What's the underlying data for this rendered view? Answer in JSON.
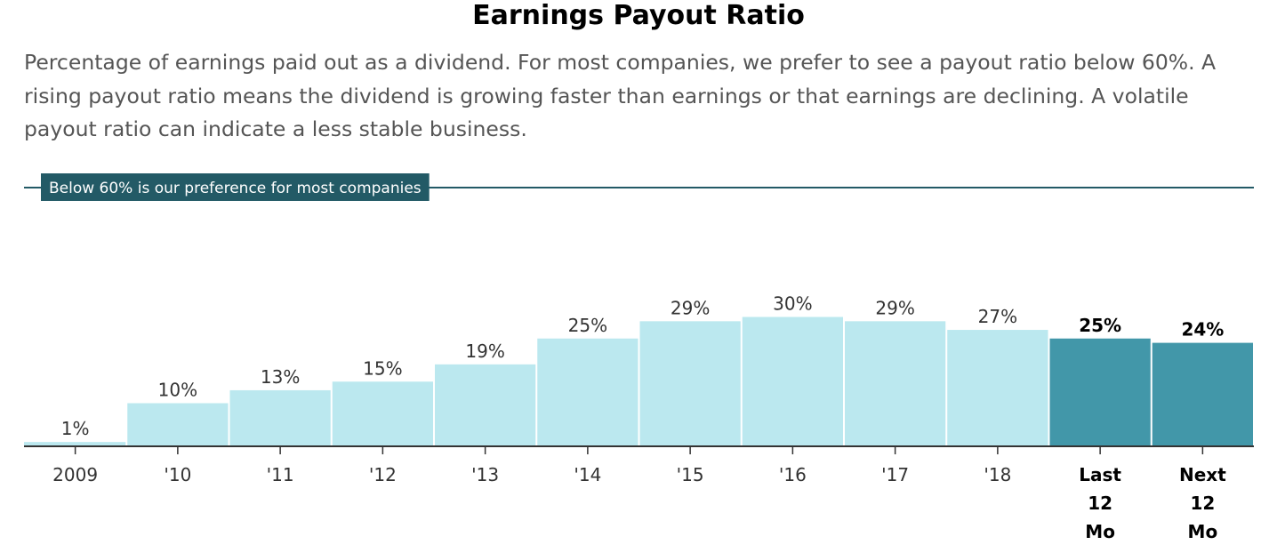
{
  "title": "Earnings Payout Ratio",
  "description": "Percentage of earnings paid out as a dividend. For most companies, we prefer to see a payout ratio below 60%. A rising payout ratio means the dividend is growing faster than earnings or that earnings are declining. A volatile payout ratio can indicate a less stable business.",
  "colors": {
    "historical_bar": "#bbe8ef",
    "highlight_bar": "#4297a9",
    "reference_line": "#235a66",
    "axis": "#333333"
  },
  "chart_data": {
    "type": "bar",
    "title": "Earnings Payout Ratio",
    "xlabel": "",
    "ylabel": "",
    "ylim": [
      0,
      60
    ],
    "grid": false,
    "value_suffix": "%",
    "categories": [
      "2009",
      "'10",
      "'11",
      "'12",
      "'13",
      "'14",
      "'15",
      "'16",
      "'17",
      "'18",
      "Last 12 Mo",
      "Next 12 Mo"
    ],
    "category_label_lines": [
      [
        "2009"
      ],
      [
        "'10"
      ],
      [
        "'11"
      ],
      [
        "'12"
      ],
      [
        "'13"
      ],
      [
        "'14"
      ],
      [
        "'15"
      ],
      [
        "'16"
      ],
      [
        "'17"
      ],
      [
        "'18"
      ],
      [
        "Last",
        "12",
        "Mo"
      ],
      [
        "Next",
        "12",
        "Mo"
      ]
    ],
    "values": [
      1,
      10,
      13,
      15,
      19,
      25,
      29,
      30,
      29,
      27,
      25,
      24
    ],
    "data_labels": [
      "1%",
      "10%",
      "13%",
      "15%",
      "19%",
      "25%",
      "29%",
      "30%",
      "29%",
      "27%",
      "25%",
      "24%"
    ],
    "highlighted": [
      false,
      false,
      false,
      false,
      false,
      false,
      false,
      false,
      false,
      false,
      true,
      true
    ],
    "reference_line": {
      "value": 60,
      "label": "Below 60% is our preference for most companies"
    }
  }
}
